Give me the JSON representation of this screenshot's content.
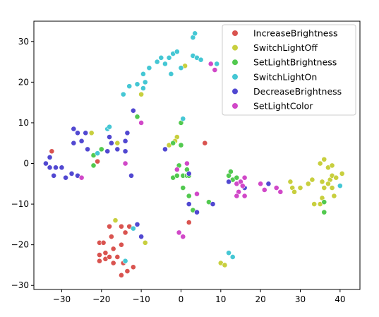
{
  "chart_data": {
    "type": "scatter",
    "title": "",
    "xlabel": "",
    "ylabel": "",
    "xlim": [
      -37,
      45
    ],
    "ylim": [
      -31,
      35
    ],
    "xticks": [
      -30,
      -20,
      -10,
      0,
      10,
      20,
      30,
      40
    ],
    "yticks": [
      -30,
      -20,
      -10,
      0,
      10,
      20,
      30
    ],
    "grid": false,
    "legend_position": "top-right",
    "series": [
      {
        "name": "IncreaseBrightness",
        "color": "#d9534f",
        "points": [
          [
            -32.5,
            3
          ],
          [
            -21,
            0.5
          ],
          [
            6,
            5
          ],
          [
            2,
            -14.5
          ],
          [
            -18,
            -15.5
          ],
          [
            -15,
            -15.5
          ],
          [
            -14,
            -17
          ],
          [
            -13,
            -15.5
          ],
          [
            -20.5,
            -19.5
          ],
          [
            -19.5,
            -19.5
          ],
          [
            -17.5,
            -18
          ],
          [
            -20.5,
            -22.5
          ],
          [
            -19,
            -22
          ],
          [
            -17,
            -21
          ],
          [
            -15,
            -20
          ],
          [
            -20.5,
            -24
          ],
          [
            -19,
            -23.5
          ],
          [
            -18,
            -23
          ],
          [
            -17,
            -24.5
          ],
          [
            -16,
            -23
          ],
          [
            -14.5,
            -24.5
          ],
          [
            -15,
            -27.5
          ],
          [
            -13.5,
            -26.5
          ],
          [
            -12,
            -25.5
          ]
        ]
      },
      {
        "name": "SwitchLightOff",
        "color": "#c8cf3e",
        "points": [
          [
            -22.5,
            7.5
          ],
          [
            -16,
            5
          ],
          [
            -10,
            17
          ],
          [
            -3,
            4.5
          ],
          [
            -1,
            6.5
          ],
          [
            -1.5,
            5.5
          ],
          [
            1,
            24
          ],
          [
            -16.5,
            -14
          ],
          [
            -9,
            -19.5
          ],
          [
            10,
            -24.5
          ],
          [
            11,
            -25
          ],
          [
            27.5,
            -4.5
          ],
          [
            28,
            -6
          ],
          [
            28.5,
            -7
          ],
          [
            30,
            -6
          ],
          [
            32,
            -5
          ],
          [
            33,
            -4
          ],
          [
            33.5,
            -10
          ],
          [
            35,
            -10
          ],
          [
            35.5,
            -8.5
          ],
          [
            35.5,
            -4.5
          ],
          [
            36,
            -6
          ],
          [
            35,
            0
          ],
          [
            36,
            1
          ],
          [
            37,
            -1
          ],
          [
            37.5,
            -4
          ],
          [
            37,
            -5
          ],
          [
            38,
            -3
          ],
          [
            39,
            -3.5
          ],
          [
            40.5,
            -2.5
          ],
          [
            38,
            -6
          ],
          [
            38.5,
            -8
          ],
          [
            38,
            -0.5
          ]
        ]
      },
      {
        "name": "SetLightBrightness",
        "color": "#52c94f",
        "points": [
          [
            -22,
            2
          ],
          [
            -20,
            3.5
          ],
          [
            -22,
            -0.5
          ],
          [
            -11,
            11.5
          ],
          [
            -2,
            5
          ],
          [
            0,
            4.5
          ],
          [
            -2,
            -3.5
          ],
          [
            -1,
            -3
          ],
          [
            -0.5,
            -0.5
          ],
          [
            0.5,
            -3
          ],
          [
            1.5,
            -3
          ],
          [
            2,
            -3
          ],
          [
            1.5,
            -1.5
          ],
          [
            0.5,
            -6
          ],
          [
            2,
            -8
          ],
          [
            3,
            -11.5
          ],
          [
            7,
            -9.5
          ],
          [
            12,
            -3
          ],
          [
            12.5,
            -2
          ],
          [
            13,
            -4
          ],
          [
            14,
            -3.5
          ],
          [
            36,
            -12
          ],
          [
            36,
            -9.5
          ],
          [
            0,
            10
          ]
        ]
      },
      {
        "name": "SwitchLightOn",
        "color": "#45c7d4",
        "points": [
          [
            -21,
            2.5
          ],
          [
            -18.5,
            8.5
          ],
          [
            -18,
            9
          ],
          [
            -14.5,
            17
          ],
          [
            -13,
            19
          ],
          [
            -11,
            19.5
          ],
          [
            -9.5,
            18.5
          ],
          [
            -9,
            20
          ],
          [
            -9.5,
            22
          ],
          [
            -8,
            23.5
          ],
          [
            -6,
            25
          ],
          [
            -5,
            26
          ],
          [
            -4,
            24.5
          ],
          [
            -3,
            26
          ],
          [
            -2,
            27
          ],
          [
            -1,
            27.5
          ],
          [
            -2.5,
            22
          ],
          [
            0,
            23.5
          ],
          [
            3,
            31
          ],
          [
            3.5,
            32
          ],
          [
            3,
            26.5
          ],
          [
            4,
            26
          ],
          [
            5,
            25.5
          ],
          [
            9,
            24.5
          ],
          [
            0.5,
            11
          ],
          [
            -14,
            -24
          ],
          [
            -12,
            -16
          ],
          [
            12,
            -22
          ],
          [
            13,
            -23
          ],
          [
            40,
            -5.5
          ]
        ]
      },
      {
        "name": "DecreaseBrightness",
        "color": "#5148d1",
        "points": [
          [
            -33,
            1.5
          ],
          [
            -34,
            0
          ],
          [
            -33,
            -1
          ],
          [
            -31.5,
            -1
          ],
          [
            -30,
            -1
          ],
          [
            -32,
            -3
          ],
          [
            -29,
            -3.5
          ],
          [
            -27.5,
            -2.5
          ],
          [
            -26,
            -3
          ],
          [
            -27,
            8.5
          ],
          [
            -26,
            7.5
          ],
          [
            -24,
            7.5
          ],
          [
            -27,
            5
          ],
          [
            -25,
            5.5
          ],
          [
            -23.5,
            3.5
          ],
          [
            -18,
            6.5
          ],
          [
            -17.5,
            5
          ],
          [
            -14,
            5.5
          ],
          [
            -13.5,
            7.5
          ],
          [
            -12,
            13
          ],
          [
            -18.5,
            3
          ],
          [
            -16,
            3.5
          ],
          [
            -14,
            3
          ],
          [
            -4,
            3.5
          ],
          [
            -11,
            -15
          ],
          [
            -10,
            -18
          ],
          [
            2,
            -2.5
          ],
          [
            2,
            -10
          ],
          [
            4,
            -12
          ],
          [
            8,
            -10
          ],
          [
            12,
            -4.5
          ],
          [
            16,
            -6
          ],
          [
            22,
            -5
          ],
          [
            -12.5,
            -3
          ]
        ]
      },
      {
        "name": "SetLightColor",
        "color": "#d148c8",
        "points": [
          [
            -25,
            -3.5
          ],
          [
            -14,
            0
          ],
          [
            -10,
            10
          ],
          [
            -1,
            -1.5
          ],
          [
            1.5,
            0
          ],
          [
            -0.5,
            -17
          ],
          [
            0.5,
            -18
          ],
          [
            4,
            -7.5
          ],
          [
            7.5,
            24.5
          ],
          [
            8.5,
            23
          ],
          [
            14,
            -5
          ],
          [
            15,
            -4.5
          ],
          [
            16,
            -3.5
          ],
          [
            15.5,
            -5.5
          ],
          [
            14.5,
            -7
          ],
          [
            14,
            -8
          ],
          [
            16,
            -8
          ],
          [
            20,
            -5
          ],
          [
            21,
            -6.5
          ],
          [
            24,
            -6
          ],
          [
            25,
            -7
          ]
        ]
      }
    ]
  }
}
